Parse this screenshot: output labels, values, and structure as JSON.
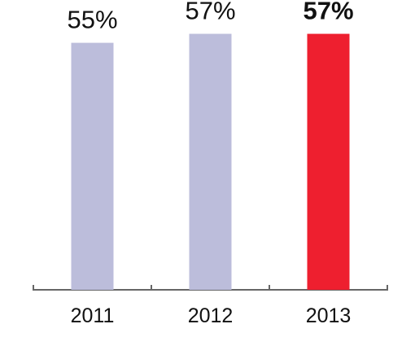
{
  "chart_data": {
    "type": "bar",
    "title": "",
    "xlabel": "",
    "ylabel": "",
    "categories": [
      "2011",
      "2012",
      "2013"
    ],
    "values": [
      55,
      57,
      57
    ],
    "value_labels": [
      "55%",
      "57%",
      "57%"
    ],
    "ylim": [
      0,
      60
    ],
    "grid": false,
    "colors": {
      "default_bar": "#bcbddb",
      "highlight_bar": "#ee1f2f",
      "highlight_label": "#d1222f",
      "axis": "#666666",
      "text": "#111111"
    },
    "highlight_index": 2
  }
}
